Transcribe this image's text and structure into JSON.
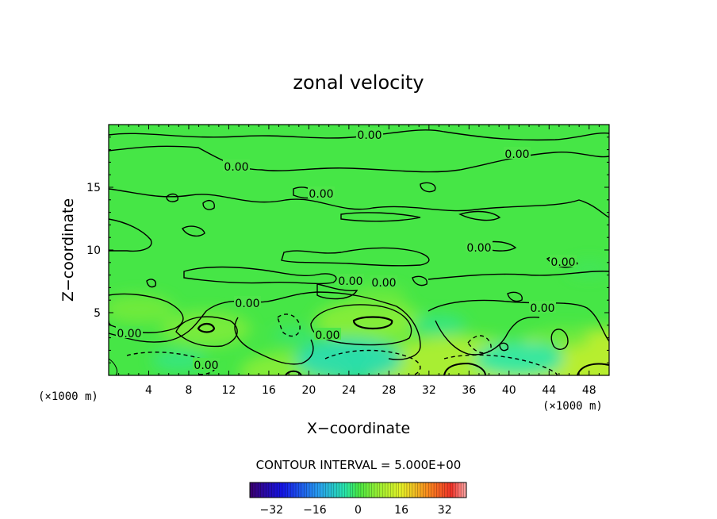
{
  "chart_data": {
    "type": "heatmap",
    "title": "zonal velocity",
    "xlabel": "X−coordinate",
    "ylabel": "Z−coordinate",
    "x_unit": "(×1000 m)",
    "z_unit": "(×1000 m)",
    "xlim": [
      0,
      50
    ],
    "ylim": [
      0,
      20
    ],
    "x_ticks": [
      4,
      8,
      12,
      16,
      20,
      24,
      28,
      32,
      36,
      40,
      44,
      48
    ],
    "y_ticks": [
      5,
      10,
      15
    ],
    "contour_interval_text": "CONTOUR INTERVAL = 5.000E+00",
    "contour_labels": [
      "0.00",
      "0.00",
      "0.00",
      "0.00",
      "0.00",
      "0.00",
      "0.00",
      "0.00",
      "0.00",
      "0.00",
      "0.00",
      "0.00",
      "0.00"
    ],
    "colorbar": {
      "range": [
        -40,
        40
      ],
      "ticks": [
        -32,
        -16,
        0,
        16,
        32
      ],
      "tick_labels": [
        "−32",
        "−16",
        "0",
        "16",
        "32"
      ]
    },
    "features": [
      {
        "kind": "max",
        "x": 26,
        "z": 4.3,
        "value": 6
      },
      {
        "kind": "max",
        "x": 9.7,
        "z": 3.7,
        "value": 5
      },
      {
        "kind": "max",
        "x": 3,
        "z": 5.3,
        "value": 4
      },
      {
        "kind": "max",
        "x": 27,
        "z": 6.3,
        "value": 3
      },
      {
        "kind": "max",
        "x": 35,
        "z": 0.3,
        "value": 10
      },
      {
        "kind": "max",
        "x": 48.5,
        "z": 0.3,
        "value": 12
      },
      {
        "kind": "max",
        "x": 18.5,
        "z": 0.2,
        "value": 6
      },
      {
        "kind": "max",
        "x": 45.5,
        "z": 3,
        "value": 3
      },
      {
        "kind": "min",
        "x": 24,
        "z": 1.3,
        "value": -6
      },
      {
        "kind": "min",
        "x": 41,
        "z": 1.3,
        "value": -5
      },
      {
        "kind": "min",
        "x": 7,
        "z": 1.2,
        "value": -3
      },
      {
        "kind": "min",
        "x": 33,
        "z": 4,
        "value": -3
      },
      {
        "kind": "min",
        "x": 18.5,
        "z": 3.2,
        "value": -2
      },
      {
        "kind": "min",
        "x": 48,
        "z": 8.5,
        "value": -1
      }
    ]
  }
}
